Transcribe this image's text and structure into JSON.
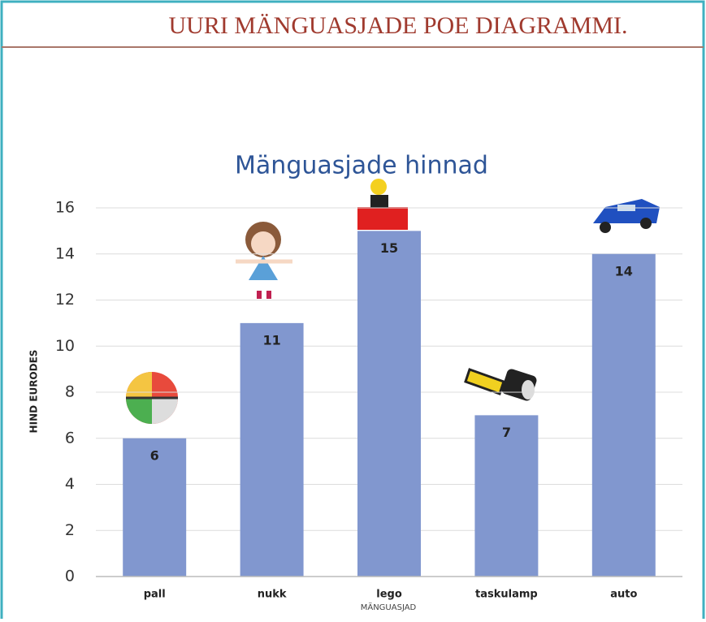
{
  "header": {
    "title": "UURI MÄNGUASJADE POE DIAGRAMMI."
  },
  "chart_data": {
    "type": "bar",
    "title": "Mänguasjade hinnad",
    "x_label": "MÄNGUASJAD",
    "y_label": "HIND EURODES",
    "categories": [
      "pall",
      "nukk",
      "lego",
      "taskulamp",
      "auto"
    ],
    "values": [
      6,
      11,
      15,
      7,
      14
    ],
    "color": "#8197cf",
    "ylim": [
      0,
      16
    ],
    "yticks": [
      0,
      2,
      4,
      6,
      8,
      10,
      12,
      14,
      16
    ],
    "grid": true
  }
}
